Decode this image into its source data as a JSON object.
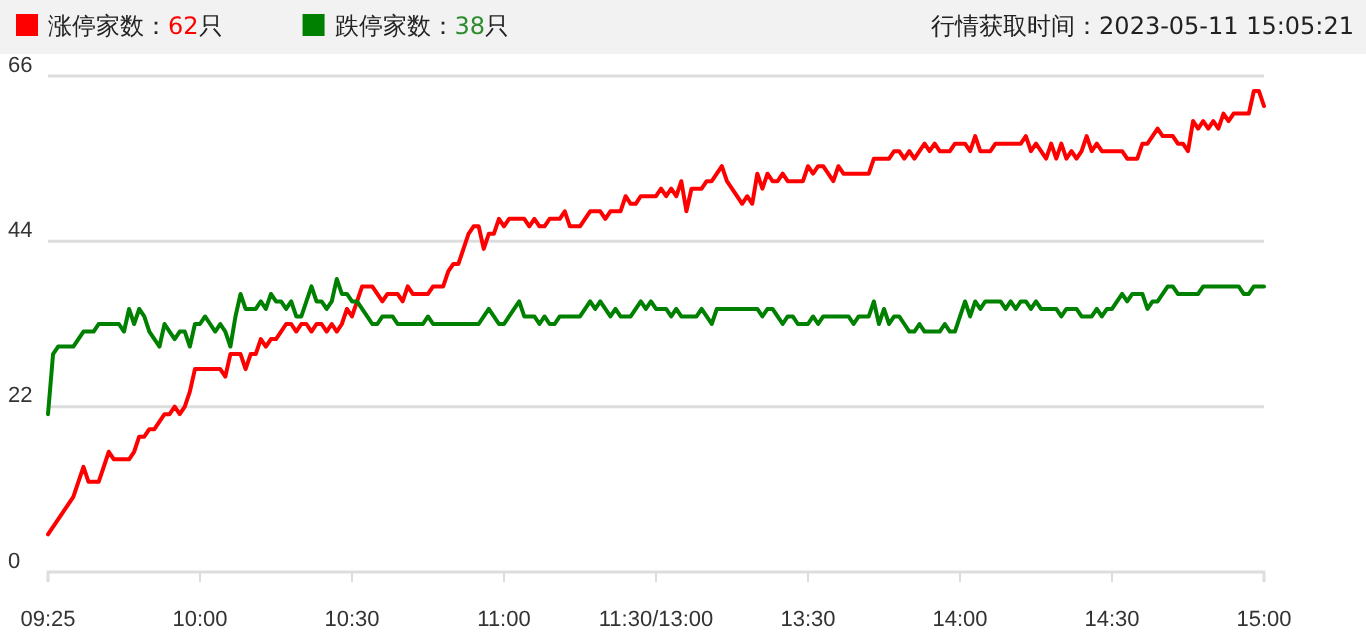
{
  "chart_data": {
    "type": "line",
    "ylim": [
      0,
      66
    ],
    "yticks": [
      0,
      22,
      44,
      66
    ],
    "categories": [
      "09:25",
      null,
      null,
      null,
      null,
      null,
      null,
      null,
      null,
      null,
      null,
      null,
      null,
      null,
      null,
      null,
      null,
      null,
      null,
      null,
      null,
      null,
      null,
      null,
      null,
      null,
      null,
      null,
      null,
      null,
      "10:00",
      null,
      null,
      null,
      null,
      null,
      null,
      null,
      null,
      null,
      null,
      null,
      null,
      null,
      null,
      null,
      null,
      null,
      null,
      null,
      null,
      null,
      null,
      null,
      null,
      null,
      null,
      null,
      null,
      null,
      "10:30",
      null,
      null,
      null,
      null,
      null,
      null,
      null,
      null,
      null,
      null,
      null,
      null,
      null,
      null,
      null,
      null,
      null,
      null,
      null,
      null,
      null,
      null,
      null,
      null,
      null,
      null,
      null,
      null,
      null,
      "11:00",
      null,
      null,
      null,
      null,
      null,
      null,
      null,
      null,
      null,
      null,
      null,
      null,
      null,
      null,
      null,
      null,
      null,
      null,
      null,
      null,
      null,
      null,
      null,
      null,
      null,
      null,
      null,
      null,
      null,
      "11:30/13:00",
      null,
      null,
      null,
      null,
      null,
      null,
      null,
      null,
      null,
      null,
      null,
      null,
      null,
      null,
      null,
      null,
      null,
      null,
      null,
      null,
      null,
      null,
      null,
      null,
      null,
      null,
      null,
      null,
      null,
      "13:30",
      null,
      null,
      null,
      null,
      null,
      null,
      null,
      null,
      null,
      null,
      null,
      null,
      null,
      null,
      null,
      null,
      null,
      null,
      null,
      null,
      null,
      null,
      null,
      null,
      null,
      null,
      null,
      null,
      null,
      "14:00",
      null,
      null,
      null,
      null,
      null,
      null,
      null,
      null,
      null,
      null,
      null,
      null,
      null,
      null,
      null,
      null,
      null,
      null,
      null,
      null,
      null,
      null,
      null,
      null,
      null,
      null,
      null,
      null,
      null,
      "14:30",
      null,
      null,
      null,
      null,
      null,
      null,
      null,
      null,
      null,
      null,
      null,
      null,
      null,
      null,
      null,
      null,
      null,
      null,
      null,
      null,
      null,
      null,
      null,
      null,
      null,
      null,
      null,
      null,
      null,
      "15:00"
    ],
    "grid": "y",
    "legend": "top left",
    "marker": "none",
    "line_style": "solid",
    "annotations": [
      "行情获取时间：2023-05-11 15:05:21"
    ],
    "series": [
      {
        "name": "涨停家数：62只",
        "color": "#ff0000",
        "values": [
          5,
          6,
          7,
          8,
          9,
          10,
          12,
          14,
          12,
          12,
          12,
          14,
          16,
          15,
          15,
          15,
          15,
          16,
          18,
          18,
          19,
          19,
          20,
          21,
          21,
          22,
          21,
          22,
          24,
          27,
          27,
          27,
          27,
          27,
          27,
          26,
          29,
          29,
          29,
          27,
          29,
          29,
          31,
          30,
          31,
          31,
          32,
          33,
          33,
          32,
          33,
          33,
          32,
          33,
          33,
          32,
          33,
          32,
          33,
          35,
          34,
          36,
          38,
          38,
          38,
          37,
          36,
          37,
          37,
          37,
          36,
          38,
          37,
          37,
          37,
          37,
          38,
          38,
          38,
          40,
          41,
          41,
          43,
          45,
          46,
          46,
          43,
          45,
          45,
          47,
          46,
          47,
          47,
          47,
          47,
          46,
          47,
          46,
          46,
          47,
          47,
          47,
          48,
          46,
          46,
          46,
          47,
          48,
          48,
          48,
          47,
          48,
          48,
          48,
          50,
          49,
          49,
          50,
          50,
          50,
          50,
          51,
          50,
          51,
          50,
          52,
          48,
          51,
          51,
          51,
          52,
          52,
          53,
          54,
          52,
          51,
          50,
          49,
          50,
          49,
          53,
          51,
          53,
          52,
          52,
          53,
          52,
          52,
          52,
          52,
          54,
          53,
          54,
          54,
          53,
          52,
          54,
          53,
          53,
          53,
          53,
          53,
          53,
          55,
          55,
          55,
          55,
          56,
          56,
          55,
          56,
          55,
          56,
          57,
          56,
          57,
          56,
          56,
          56,
          57,
          57,
          57,
          56,
          58,
          56,
          56,
          56,
          57,
          57,
          57,
          57,
          57,
          57,
          58,
          56,
          57,
          56,
          55,
          57,
          55,
          57,
          55,
          56,
          55,
          56,
          58,
          56,
          57,
          56,
          56,
          56,
          56,
          56,
          55,
          55,
          55,
          57,
          57,
          58,
          59,
          58,
          58,
          58,
          57,
          57,
          56,
          60,
          59,
          60,
          59,
          60,
          59,
          61,
          60,
          61,
          61,
          61,
          61,
          64,
          64,
          62
        ]
      },
      {
        "name": "跌停家数：38只",
        "color": "#008000",
        "values": [
          21,
          29,
          30,
          30,
          30,
          30,
          31,
          32,
          32,
          32,
          33,
          33,
          33,
          33,
          33,
          32,
          35,
          33,
          35,
          34,
          32,
          31,
          30,
          33,
          32,
          31,
          32,
          32,
          30,
          33,
          33,
          34,
          33,
          32,
          33,
          32,
          30,
          34,
          37,
          35,
          35,
          35,
          36,
          35,
          37,
          36,
          36,
          35,
          36,
          34,
          34,
          36,
          38,
          36,
          36,
          35,
          36,
          39,
          37,
          37,
          36,
          36,
          35,
          34,
          33,
          33,
          34,
          34,
          34,
          33,
          33,
          33,
          33,
          33,
          33,
          34,
          33,
          33,
          33,
          33,
          33,
          33,
          33,
          33,
          33,
          33,
          34,
          35,
          34,
          33,
          33,
          34,
          35,
          36,
          34,
          34,
          34,
          33,
          34,
          33,
          33,
          34,
          34,
          34,
          34,
          34,
          35,
          36,
          35,
          36,
          35,
          34,
          35,
          34,
          34,
          34,
          35,
          36,
          35,
          36,
          35,
          35,
          35,
          34,
          35,
          34,
          34,
          34,
          34,
          35,
          34,
          33,
          35,
          35,
          35,
          35,
          35,
          35,
          35,
          35,
          35,
          34,
          35,
          35,
          34,
          33,
          34,
          34,
          33,
          33,
          33,
          34,
          33,
          34,
          34,
          34,
          34,
          34,
          34,
          33,
          34,
          34,
          34,
          36,
          33,
          35,
          33,
          34,
          34,
          33,
          32,
          32,
          33,
          32,
          32,
          32,
          32,
          33,
          32,
          32,
          34,
          36,
          34,
          36,
          35,
          36,
          36,
          36,
          36,
          35,
          36,
          35,
          36,
          36,
          35,
          36,
          35,
          35,
          35,
          35,
          34,
          35,
          35,
          35,
          34,
          34,
          34,
          35,
          34,
          35,
          35,
          36,
          37,
          36,
          37,
          37,
          37,
          35,
          36,
          36,
          37,
          38,
          38,
          37,
          37,
          37,
          37,
          37,
          38,
          38,
          38,
          38,
          38,
          38,
          38,
          38,
          37,
          37,
          38,
          38,
          38
        ]
      }
    ]
  }
}
